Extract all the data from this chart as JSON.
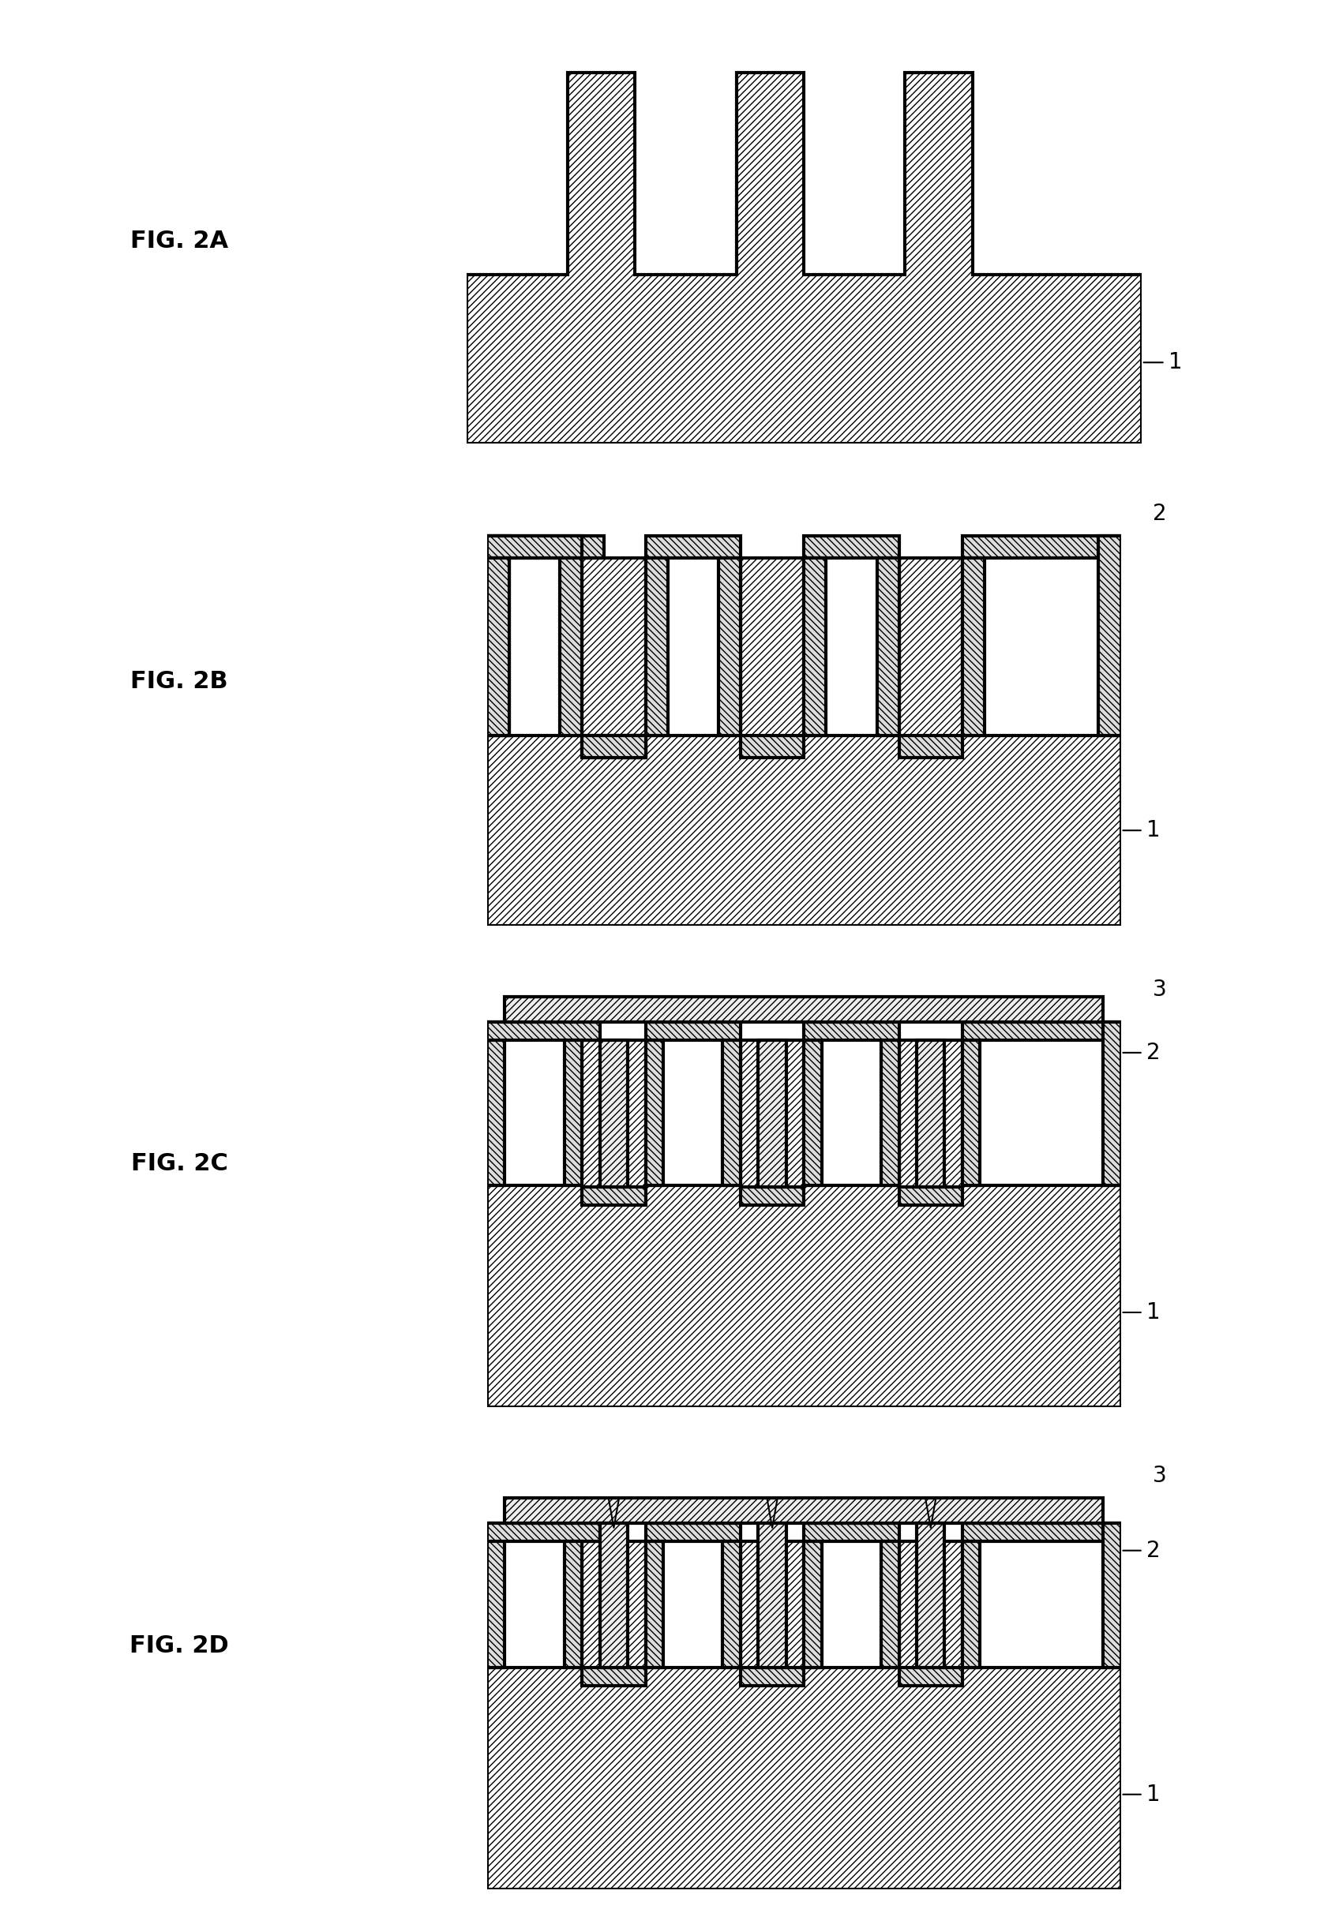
{
  "background_color": "#ffffff",
  "fig_width": 16.83,
  "fig_height": 24.43,
  "hatch_pattern": "////",
  "hatch_color": "#000000",
  "face_color_1": "#ffffff",
  "face_color_2": "#e8e8e8",
  "line_color": "#000000",
  "line_width": 2.0,
  "label_fontsize": 22,
  "ref_fontsize": 20,
  "figures": [
    "FIG. 2A",
    "FIG. 2B",
    "FIG. 2C",
    "FIG. 2D"
  ]
}
